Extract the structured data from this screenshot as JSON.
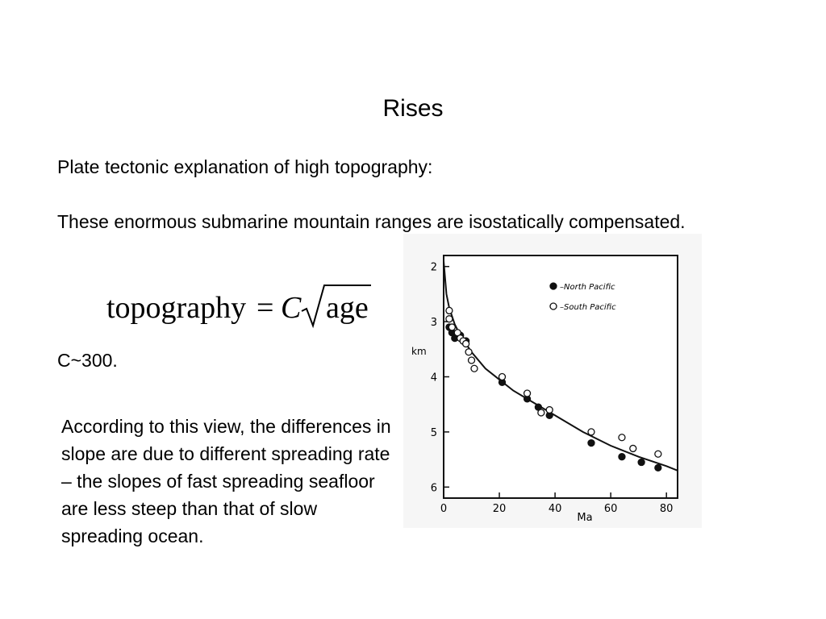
{
  "slide": {
    "title": "Rises",
    "line1": "Plate tectonic explanation of high topography:",
    "line2": "These enormous submarine mountain ranges are isostatically compensated.",
    "formula": {
      "lhs": "topography",
      "equals": "=",
      "constant_symbol": "C",
      "radicand": "age"
    },
    "constant": "C~300.",
    "explanation": "According to this view, the differences in slope are due to different spreading rate – the slopes of fast spreading seafloor are less steep than that of slow spreading ocean."
  },
  "chart_data": {
    "type": "scatter",
    "xlabel": "Ma",
    "ylabel": "km",
    "xlim": [
      0,
      84
    ],
    "ylim": [
      6.2,
      1.8
    ],
    "y_inverted": true,
    "xticks": [
      0,
      20,
      40,
      60,
      80
    ],
    "yticks": [
      2,
      3,
      4,
      5,
      6
    ],
    "legend_position": "top-right",
    "series": [
      {
        "name": "North Pacific",
        "marker": "filled",
        "x": [
          2,
          3,
          4,
          6,
          8,
          21,
          30,
          34,
          38,
          53,
          64,
          71,
          77
        ],
        "y": [
          3.1,
          3.2,
          3.3,
          3.25,
          3.35,
          4.1,
          4.4,
          4.55,
          4.7,
          5.2,
          5.45,
          5.55,
          5.65
        ]
      },
      {
        "name": "South Pacific",
        "marker": "open",
        "x": [
          2,
          2,
          3,
          5,
          6,
          7,
          8,
          9,
          10,
          11,
          21,
          30,
          35,
          38,
          53,
          64,
          68,
          77
        ],
        "y": [
          2.8,
          2.95,
          3.1,
          3.2,
          3.3,
          3.35,
          3.4,
          3.55,
          3.7,
          3.85,
          4.0,
          4.3,
          4.65,
          4.6,
          5.0,
          5.1,
          5.3,
          5.4
        ]
      }
    ],
    "curve": {
      "x": [
        0,
        1,
        2,
        4,
        6,
        8,
        10,
        15,
        20,
        25,
        30,
        40,
        50,
        60,
        70,
        80,
        84
      ],
      "y": [
        1.9,
        2.5,
        2.75,
        3.05,
        3.25,
        3.4,
        3.55,
        3.85,
        4.05,
        4.25,
        4.4,
        4.7,
        5.0,
        5.25,
        5.45,
        5.62,
        5.7
      ]
    }
  }
}
